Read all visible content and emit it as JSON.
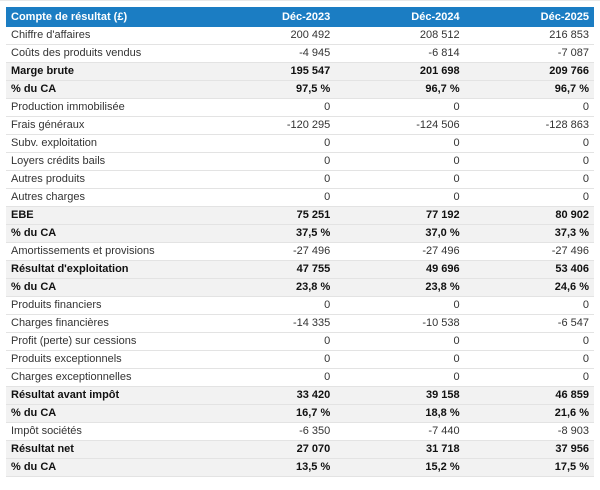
{
  "theme": {
    "header_bg": "#1b7dc3",
    "header_text": "#ffffff",
    "shaded_row_bg": "#f2f2f2",
    "row_border": "#e3e3e3",
    "text_color": "#333333",
    "bold_text_color": "#111111",
    "top_divider_color": "#e8e8e8"
  },
  "table": {
    "title_column_header": "Compte de résultat (£)",
    "period_headers": [
      "Déc-2023",
      "Déc-2024",
      "Déc-2025"
    ],
    "rows": [
      {
        "label": "Chiffre d'affaires",
        "values": [
          "200 492",
          "208 512",
          "216 853"
        ],
        "emphasis": false
      },
      {
        "label": "Coûts des produits vendus",
        "values": [
          "-4 945",
          "-6 814",
          "-7 087"
        ],
        "emphasis": false
      },
      {
        "label": "Marge brute",
        "values": [
          "195 547",
          "201 698",
          "209 766"
        ],
        "emphasis": true
      },
      {
        "label": "% du CA",
        "values": [
          "97,5 %",
          "96,7 %",
          "96,7 %"
        ],
        "emphasis": true
      },
      {
        "label": "Production immobilisée",
        "values": [
          "0",
          "0",
          "0"
        ],
        "emphasis": false
      },
      {
        "label": "Frais généraux",
        "values": [
          "-120 295",
          "-124 506",
          "-128 863"
        ],
        "emphasis": false
      },
      {
        "label": "Subv. exploitation",
        "values": [
          "0",
          "0",
          "0"
        ],
        "emphasis": false
      },
      {
        "label": "Loyers crédits bails",
        "values": [
          "0",
          "0",
          "0"
        ],
        "emphasis": false
      },
      {
        "label": "Autres produits",
        "values": [
          "0",
          "0",
          "0"
        ],
        "emphasis": false
      },
      {
        "label": "Autres charges",
        "values": [
          "0",
          "0",
          "0"
        ],
        "emphasis": false
      },
      {
        "label": "EBE",
        "values": [
          "75 251",
          "77 192",
          "80 902"
        ],
        "emphasis": true
      },
      {
        "label": "% du CA",
        "values": [
          "37,5 %",
          "37,0 %",
          "37,3 %"
        ],
        "emphasis": true
      },
      {
        "label": "Amortissements et provisions",
        "values": [
          "-27 496",
          "-27 496",
          "-27 496"
        ],
        "emphasis": false
      },
      {
        "label": "Résultat d'exploitation",
        "values": [
          "47 755",
          "49 696",
          "53 406"
        ],
        "emphasis": true
      },
      {
        "label": "% du CA",
        "values": [
          "23,8 %",
          "23,8 %",
          "24,6 %"
        ],
        "emphasis": true
      },
      {
        "label": "Produits financiers",
        "values": [
          "0",
          "0",
          "0"
        ],
        "emphasis": false
      },
      {
        "label": "Charges financières",
        "values": [
          "-14 335",
          "-10 538",
          "-6 547"
        ],
        "emphasis": false
      },
      {
        "label": "Profit (perte) sur cessions",
        "values": [
          "0",
          "0",
          "0"
        ],
        "emphasis": false
      },
      {
        "label": "Produits exceptionnels",
        "values": [
          "0",
          "0",
          "0"
        ],
        "emphasis": false
      },
      {
        "label": "Charges exceptionnelles",
        "values": [
          "0",
          "0",
          "0"
        ],
        "emphasis": false
      },
      {
        "label": "Résultat avant impôt",
        "values": [
          "33 420",
          "39 158",
          "46 859"
        ],
        "emphasis": true
      },
      {
        "label": "% du CA",
        "values": [
          "16,7 %",
          "18,8 %",
          "21,6 %"
        ],
        "emphasis": true
      },
      {
        "label": "Impôt sociétés",
        "values": [
          "-6 350",
          "-7 440",
          "-8 903"
        ],
        "emphasis": false
      },
      {
        "label": "Résultat net",
        "values": [
          "27 070",
          "31 718",
          "37 956"
        ],
        "emphasis": true
      },
      {
        "label": "% du CA",
        "values": [
          "13,5 %",
          "15,2 %",
          "17,5 %"
        ],
        "emphasis": true
      }
    ]
  }
}
